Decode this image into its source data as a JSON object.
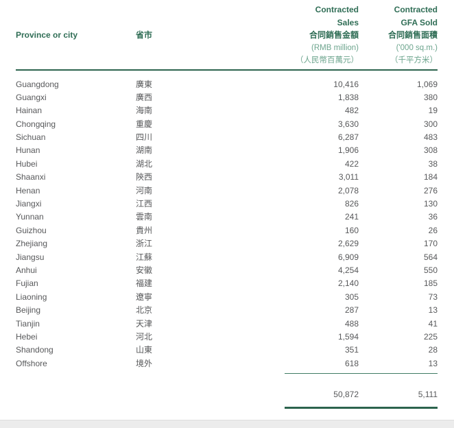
{
  "page": {
    "bg": "#ffffff",
    "bottom_strip_color": "#ececec"
  },
  "colors": {
    "header_green": "#2f6d55",
    "subheader_green": "#6da58e",
    "rule_green": "#2c634d",
    "body_gray": "#57585a"
  },
  "table": {
    "header": {
      "province_en": "Province or city",
      "province_zh": "省市",
      "sales": {
        "line1": "Contracted",
        "line2": "Sales",
        "line3": "合同銷售金額",
        "line4": "(RMB million)",
        "line5": "（人民幣百萬元）"
      },
      "gfa": {
        "line1": "Contracted",
        "line2": "GFA Sold",
        "line3": "合同銷售面積",
        "line4": "('000 sq.m.)",
        "line5": "（千平方米）"
      }
    },
    "rows": [
      {
        "en": "Guangdong",
        "zh": "廣東",
        "sales": "10,416",
        "gfa": "1,069"
      },
      {
        "en": "Guangxi",
        "zh": "廣西",
        "sales": "1,838",
        "gfa": "380"
      },
      {
        "en": "Hainan",
        "zh": "海南",
        "sales": "482",
        "gfa": "19"
      },
      {
        "en": "Chongqing",
        "zh": "重慶",
        "sales": "3,630",
        "gfa": "300"
      },
      {
        "en": "Sichuan",
        "zh": "四川",
        "sales": "6,287",
        "gfa": "483"
      },
      {
        "en": "Hunan",
        "zh": "湖南",
        "sales": "1,906",
        "gfa": "308"
      },
      {
        "en": "Hubei",
        "zh": "湖北",
        "sales": "422",
        "gfa": "38"
      },
      {
        "en": "Shaanxi",
        "zh": "陝西",
        "sales": "3,011",
        "gfa": "184"
      },
      {
        "en": "Henan",
        "zh": "河南",
        "sales": "2,078",
        "gfa": "276"
      },
      {
        "en": "Jiangxi",
        "zh": "江西",
        "sales": "826",
        "gfa": "130"
      },
      {
        "en": "Yunnan",
        "zh": "雲南",
        "sales": "241",
        "gfa": "36"
      },
      {
        "en": "Guizhou",
        "zh": "貴州",
        "sales": "160",
        "gfa": "26"
      },
      {
        "en": "Zhejiang",
        "zh": "浙江",
        "sales": "2,629",
        "gfa": "170"
      },
      {
        "en": "Jiangsu",
        "zh": "江蘇",
        "sales": "6,909",
        "gfa": "564"
      },
      {
        "en": "Anhui",
        "zh": "安徽",
        "sales": "4,254",
        "gfa": "550"
      },
      {
        "en": "Fujian",
        "zh": "福建",
        "sales": "2,140",
        "gfa": "185"
      },
      {
        "en": "Liaoning",
        "zh": "遼寧",
        "sales": "305",
        "gfa": "73"
      },
      {
        "en": "Beijing",
        "zh": "北京",
        "sales": "287",
        "gfa": "13"
      },
      {
        "en": "Tianjin",
        "zh": "天津",
        "sales": "488",
        "gfa": "41"
      },
      {
        "en": "Hebei",
        "zh": "河北",
        "sales": "1,594",
        "gfa": "225"
      },
      {
        "en": "Shandong",
        "zh": "山東",
        "sales": "351",
        "gfa": "28"
      },
      {
        "en": "Offshore",
        "zh": "境外",
        "sales": "618",
        "gfa": "13"
      }
    ],
    "totals": {
      "sales": "50,872",
      "gfa": "5,111"
    }
  }
}
